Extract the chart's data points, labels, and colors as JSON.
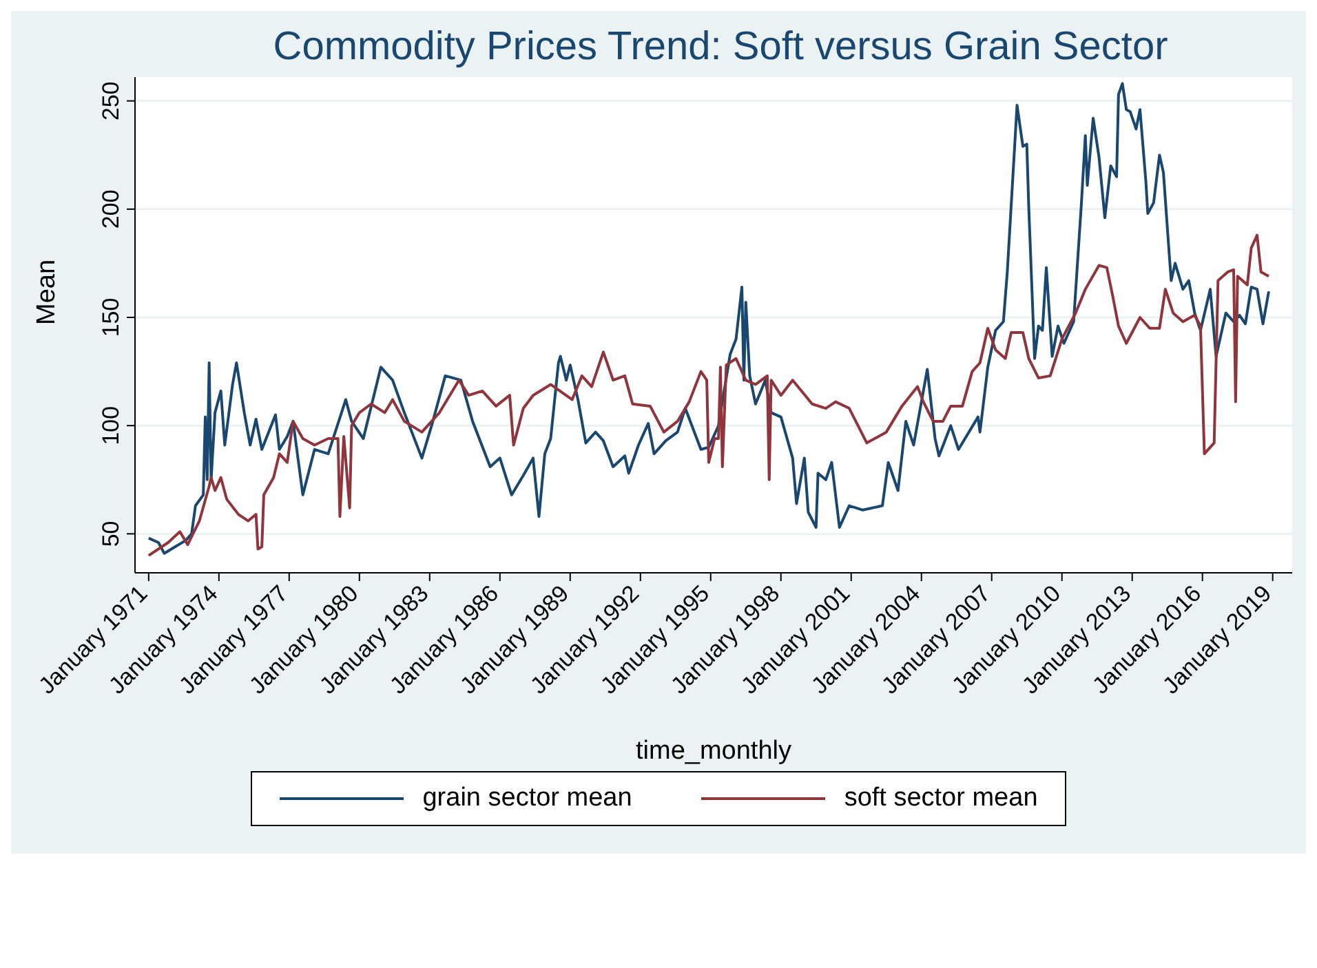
{
  "chart_data": {
    "type": "line",
    "title": "Commodity Prices Trend: Soft versus Grain Sector",
    "xlabel": "time_monthly",
    "ylabel": "Mean",
    "xlim": [
      "1970-06",
      "2019-11"
    ],
    "ylim": [
      32,
      261
    ],
    "xticks": [
      {
        "value": "1971-01",
        "label": "January 1971"
      },
      {
        "value": "1974-01",
        "label": "January 1974"
      },
      {
        "value": "1977-01",
        "label": "January 1977"
      },
      {
        "value": "1980-01",
        "label": "January 1980"
      },
      {
        "value": "1983-01",
        "label": "January 1983"
      },
      {
        "value": "1986-01",
        "label": "January 1986"
      },
      {
        "value": "1989-01",
        "label": "January 1989"
      },
      {
        "value": "1992-01",
        "label": "January 1992"
      },
      {
        "value": "1995-01",
        "label": "January 1995"
      },
      {
        "value": "1998-01",
        "label": "January 1998"
      },
      {
        "value": "2001-01",
        "label": "January 2001"
      },
      {
        "value": "2004-01",
        "label": "January 2004"
      },
      {
        "value": "2007-01",
        "label": "January 2007"
      },
      {
        "value": "2010-01",
        "label": "January 2010"
      },
      {
        "value": "2013-01",
        "label": "January 2013"
      },
      {
        "value": "2016-01",
        "label": "January 2016"
      },
      {
        "value": "2019-01",
        "label": "January 2019"
      }
    ],
    "yticks": [
      50,
      100,
      150,
      200,
      250
    ],
    "grid": "y",
    "legend": "bottom",
    "marker": "none",
    "line_style": "solid",
    "series": [
      {
        "name": "grain sector mean",
        "color": "#1a476f",
        "x": [
          "1971-01",
          "1971-06",
          "1971-09",
          "1972-08",
          "1972-11",
          "1973-01",
          "1973-05",
          "1973-06",
          "1973-07",
          "1973-08",
          "1973-09",
          "1973-11",
          "1974-02",
          "1974-04",
          "1974-08",
          "1974-10",
          "1975-02",
          "1975-05",
          "1975-08",
          "1975-11",
          "1976-06",
          "1976-08",
          "1976-12",
          "1977-03",
          "1977-08",
          "1978-02",
          "1978-09",
          "1979-06",
          "1979-09",
          "1980-03",
          "1980-12",
          "1981-06",
          "1981-12",
          "1982-09",
          "1983-02",
          "1983-09",
          "1984-05",
          "1984-11",
          "1985-08",
          "1986-01",
          "1986-07",
          "1987-01",
          "1987-06",
          "1987-09",
          "1987-12",
          "1988-03",
          "1988-07",
          "1988-08",
          "1988-11",
          "1989-01",
          "1989-05",
          "1989-09",
          "1990-02",
          "1990-06",
          "1990-11",
          "1991-05",
          "1991-07",
          "1991-12",
          "1992-05",
          "1992-08",
          "1993-02",
          "1993-08",
          "1993-12",
          "1994-08",
          "1994-12",
          "1995-05",
          "1995-11",
          "1996-02",
          "1996-05",
          "1996-06",
          "1996-07",
          "1996-09",
          "1996-12",
          "1997-05",
          "1997-08",
          "1998-01",
          "1998-07",
          "1998-09",
          "1999-01",
          "1999-03",
          "1999-07",
          "1999-08",
          "1999-12",
          "2000-03",
          "2000-07",
          "2000-12",
          "2001-07",
          "2002-05",
          "2002-08",
          "2003-01",
          "2003-05",
          "2003-09",
          "2004-04",
          "2004-08",
          "2004-10",
          "2005-04",
          "2005-08",
          "2006-06",
          "2006-07",
          "2006-11",
          "2007-03",
          "2007-07",
          "2007-09",
          "2008-02",
          "2008-05",
          "2008-07",
          "2008-08",
          "2008-11",
          "2009-01",
          "2009-03",
          "2009-05",
          "2009-08",
          "2009-11",
          "2010-02",
          "2010-07",
          "2010-11",
          "2011-01",
          "2011-02",
          "2011-05",
          "2011-08",
          "2011-11",
          "2012-02",
          "2012-05",
          "2012-06",
          "2012-08",
          "2012-10",
          "2012-12",
          "2013-03",
          "2013-05",
          "2013-08",
          "2013-09",
          "2013-12",
          "2014-03",
          "2014-05",
          "2014-08",
          "2014-09",
          "2014-11",
          "2015-03",
          "2015-06",
          "2015-09",
          "2015-12",
          "2016-05",
          "2016-08",
          "2017-01",
          "2017-05",
          "2017-08",
          "2017-11",
          "2018-02",
          "2018-05",
          "2018-08",
          "2018-11"
        ],
        "values": [
          48,
          46,
          41,
          47,
          50,
          63,
          68,
          104,
          75,
          129,
          75,
          106,
          116,
          91,
          119,
          129,
          106,
          91,
          103,
          89,
          105,
          89,
          95,
          102,
          68,
          89,
          87,
          112,
          102,
          94,
          127,
          121,
          106,
          85,
          100,
          123,
          121,
          102,
          81,
          85,
          68,
          77,
          85,
          58,
          87,
          94,
          129,
          132,
          121,
          128,
          112,
          92,
          97,
          93,
          81,
          86,
          78,
          91,
          101,
          87,
          93,
          97,
          108,
          89,
          90,
          100,
          133,
          140,
          164,
          121,
          157,
          123,
          110,
          121,
          106,
          104,
          85,
          64,
          85,
          60,
          53,
          78,
          75,
          83,
          53,
          63,
          61,
          63,
          83,
          70,
          102,
          91,
          126,
          94,
          86,
          100,
          89,
          104,
          97,
          127,
          144,
          148,
          171,
          248,
          229,
          230,
          201,
          131,
          146,
          144,
          173,
          132,
          146,
          138,
          148,
          203,
          234,
          211,
          242,
          224,
          196,
          220,
          215,
          253,
          258,
          246,
          245,
          237,
          246,
          213,
          198,
          203,
          225,
          217,
          179,
          167,
          175,
          163,
          167,
          152,
          144,
          163,
          132,
          152,
          148,
          151,
          147,
          164,
          163,
          147,
          162
        ]
      },
      {
        "name": "soft sector mean",
        "color": "#90353b",
        "x": [
          "1971-01",
          "1971-11",
          "1972-05",
          "1972-09",
          "1973-03",
          "1973-08",
          "1973-09",
          "1973-11",
          "1974-02",
          "1974-05",
          "1974-11",
          "1975-04",
          "1975-08",
          "1975-09",
          "1975-11",
          "1975-12",
          "1976-05",
          "1976-08",
          "1976-12",
          "1977-03",
          "1977-08",
          "1978-02",
          "1978-09",
          "1979-02",
          "1979-03",
          "1979-05",
          "1979-08",
          "1979-09",
          "1980-01",
          "1980-07",
          "1981-02",
          "1981-06",
          "1981-12",
          "1982-09",
          "1983-06",
          "1984-04",
          "1984-09",
          "1985-04",
          "1985-11",
          "1986-06",
          "1986-08",
          "1987-01",
          "1987-06",
          "1988-03",
          "1989-02",
          "1989-07",
          "1989-12",
          "1990-06",
          "1990-11",
          "1991-05",
          "1991-09",
          "1992-06",
          "1993-01",
          "1993-08",
          "1994-02",
          "1994-08",
          "1994-11",
          "1994-12",
          "1995-03",
          "1995-05",
          "1995-06",
          "1995-07",
          "1995-09",
          "1996-02",
          "1996-07",
          "1996-12",
          "1997-06",
          "1997-07",
          "1997-08",
          "1998-01",
          "1998-07",
          "1999-05",
          "1999-12",
          "2000-05",
          "2000-12",
          "2001-09",
          "2002-07",
          "2003-03",
          "2003-11",
          "2004-02",
          "2004-07",
          "2004-12",
          "2005-04",
          "2005-10",
          "2006-03",
          "2006-07",
          "2006-11",
          "2007-03",
          "2007-08",
          "2007-11",
          "2008-05",
          "2008-08",
          "2009-01",
          "2009-07",
          "2010-01",
          "2010-08",
          "2011-01",
          "2011-08",
          "2011-12",
          "2012-03",
          "2012-06",
          "2012-10",
          "2013-05",
          "2013-10",
          "2014-03",
          "2014-06",
          "2014-10",
          "2015-03",
          "2015-09",
          "2015-12",
          "2016-02",
          "2016-05",
          "2016-07",
          "2016-09",
          "2017-02",
          "2017-05",
          "2017-06",
          "2017-07",
          "2017-12",
          "2018-02",
          "2018-05",
          "2018-07",
          "2018-11"
        ],
        "values": [
          40,
          46,
          51,
          45,
          56,
          72,
          76,
          70,
          76,
          66,
          59,
          56,
          59,
          43,
          44,
          68,
          76,
          87,
          83,
          102,
          94,
          91,
          94,
          94,
          58,
          95,
          62,
          100,
          106,
          110,
          106,
          112,
          102,
          97,
          106,
          121,
          114,
          116,
          109,
          114,
          91,
          108,
          114,
          119,
          112,
          123,
          118,
          134,
          121,
          123,
          110,
          109,
          97,
          102,
          111,
          125,
          121,
          83,
          94,
          94,
          127,
          81,
          128,
          131,
          121,
          119,
          123,
          75,
          121,
          114,
          121,
          110,
          108,
          111,
          108,
          92,
          97,
          109,
          118,
          111,
          102,
          102,
          109,
          109,
          125,
          129,
          145,
          135,
          131,
          143,
          143,
          131,
          122,
          123,
          140,
          152,
          163,
          174,
          173,
          160,
          146,
          138,
          150,
          145,
          145,
          163,
          152,
          148,
          151,
          146,
          87,
          90,
          92,
          167,
          171,
          172,
          111,
          169,
          165,
          182,
          188,
          171,
          169
        ]
      }
    ]
  }
}
